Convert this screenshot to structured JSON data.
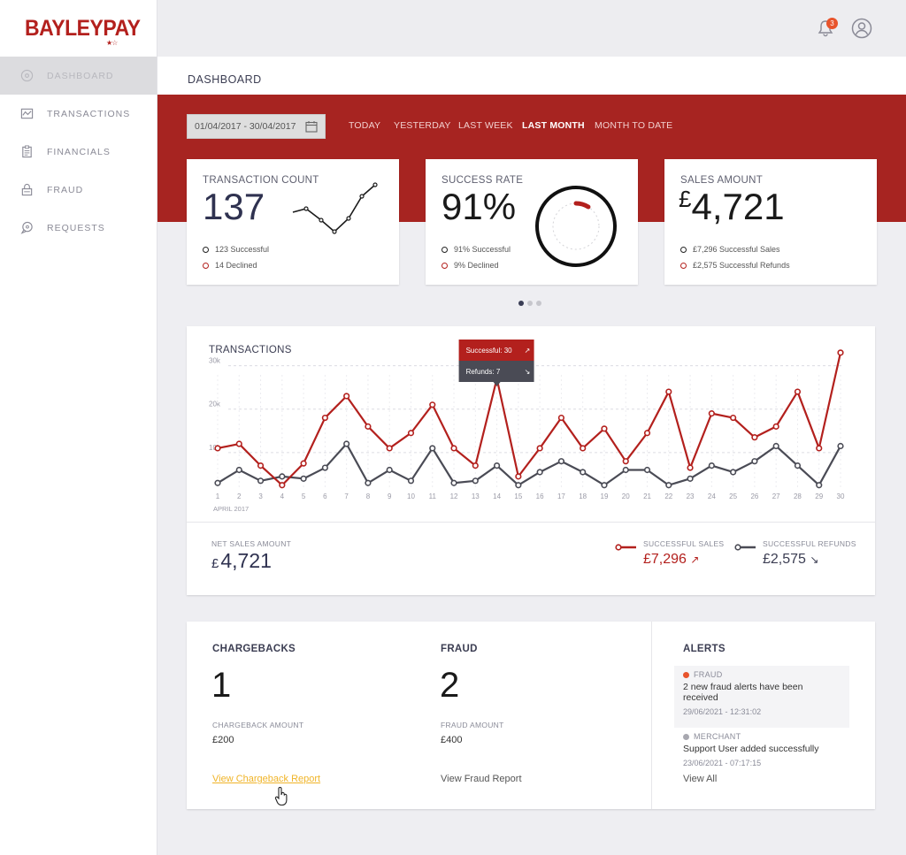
{
  "brand": {
    "name": "BAYLEYPAY",
    "color": "#b3201d"
  },
  "sidebar": {
    "items": [
      {
        "label": "DASHBOARD",
        "icon": "dashboard-icon",
        "active": true
      },
      {
        "label": "TRANSACTIONS",
        "icon": "transactions-chart-icon",
        "active": false
      },
      {
        "label": "FINANCIALS",
        "icon": "clipboard-icon",
        "active": false
      },
      {
        "label": "FRAUD",
        "icon": "lock-icon",
        "active": false
      },
      {
        "label": "REQUESTS",
        "icon": "chat-bubble-icon",
        "active": false
      }
    ]
  },
  "header": {
    "notification_count": "3",
    "tab": "DASHBOARD"
  },
  "filters": {
    "date_range": "01/04/2017 - 30/04/2017",
    "options": [
      "TODAY",
      "YESTERDAY",
      "LAST WEEK",
      "LAST MONTH",
      "MONTH TO DATE"
    ],
    "selected": "LAST MONTH"
  },
  "kpis": {
    "count": {
      "title": "TRANSACTION COUNT",
      "value": "137",
      "legend": [
        "123 Successful",
        "14 Declined"
      ]
    },
    "rate": {
      "title": "SUCCESS RATE",
      "value": "91%",
      "legend": [
        "91% Successful",
        "9% Declined"
      ],
      "declined_fraction": 0.09
    },
    "sales": {
      "title": "SALES AMOUNT",
      "currency": "£",
      "value": "4,721",
      "legend": [
        "£7,296 Successful Sales",
        "£2,575 Successful Refunds"
      ]
    }
  },
  "transactions": {
    "title": "TRANSACTIONS",
    "tooltip": {
      "successful": "Successful: 30",
      "refunds": "Refunds: 7"
    },
    "month_label": "APRIL 2017",
    "net_label": "NET SALES AMOUNT",
    "net_currency": "£",
    "net_value": "4,721",
    "sales_label": "SUCCESSFUL SALES",
    "sales_value": "£7,296",
    "refunds_label": "SUCCESSFUL REFUNDS",
    "refunds_value": "£2,575"
  },
  "chart_data": {
    "type": "line",
    "x": [
      1,
      2,
      3,
      4,
      5,
      6,
      7,
      8,
      9,
      10,
      11,
      12,
      13,
      14,
      15,
      16,
      17,
      18,
      19,
      20,
      21,
      22,
      23,
      24,
      25,
      26,
      27,
      28,
      29,
      30
    ],
    "ylim": [
      0,
      35000
    ],
    "yticks": [
      "10k",
      "20k",
      "30k"
    ],
    "grid": true,
    "series": [
      {
        "name": "SUCCESSFUL SALES",
        "color": "#b3201d",
        "values": [
          11000,
          12000,
          7000,
          2500,
          7500,
          18000,
          23000,
          16000,
          11000,
          14500,
          21000,
          11000,
          7000,
          27000,
          4500,
          11000,
          18000,
          11000,
          15500,
          8000,
          14500,
          24000,
          6500,
          19000,
          18000,
          13500,
          16000,
          24000,
          11000,
          33000
        ]
      },
      {
        "name": "SUCCESSFUL REFUNDS",
        "color": "#4a4b55",
        "values": [
          3000,
          6000,
          3500,
          4500,
          4000,
          6500,
          12000,
          3000,
          6000,
          3500,
          11000,
          3000,
          3500,
          7000,
          2500,
          5500,
          8000,
          5500,
          2500,
          6000,
          6000,
          2500,
          4000,
          7000,
          5500,
          8000,
          11500,
          7000,
          2500,
          11500
        ]
      }
    ]
  },
  "bottom": {
    "chargebacks": {
      "title": "CHARGEBACKS",
      "count": "1",
      "amount_label": "CHARGEBACK AMOUNT",
      "amount": "£200",
      "link": "View Chargeback Report"
    },
    "fraud": {
      "title": "FRAUD",
      "count": "2",
      "amount_label": "FRAUD AMOUNT",
      "amount": "£400",
      "link": "View Fraud Report"
    },
    "alerts": {
      "title": "ALERTS",
      "items": [
        {
          "category": "FRAUD",
          "color": "#e8542c",
          "message": "2 new fraud alerts have been received",
          "time": "29/06/2021 - 12:31:02"
        },
        {
          "category": "MERCHANT",
          "color": "#a8a8b0",
          "message": "Support User added successfully",
          "time": "23/06/2021 - 07:17:15"
        }
      ],
      "view_all": "View All"
    }
  }
}
